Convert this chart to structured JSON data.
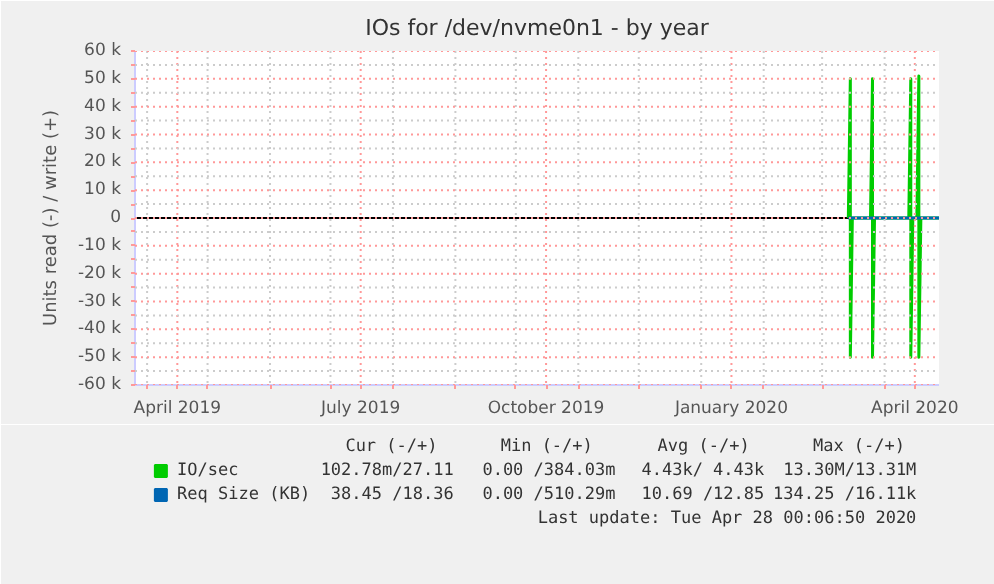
{
  "chart_data": {
    "type": "line",
    "title": "IOs for /dev/nvme0n1 - by year",
    "ylabel": "Units read (-) / write (+)",
    "xlim": [
      "2019-03-26",
      "2020-04-28"
    ],
    "ylim": [
      -60000,
      60000
    ],
    "xticks": [
      {
        "value": "2019-04-01",
        "label": null
      },
      {
        "value": "2019-04-16",
        "label": "April 2019"
      },
      {
        "value": "2019-05-01",
        "label": null
      },
      {
        "value": "2019-06-01",
        "label": null
      },
      {
        "value": "2019-07-01",
        "label": null
      },
      {
        "value": "2019-07-16",
        "label": "July 2019"
      },
      {
        "value": "2019-08-01",
        "label": null
      },
      {
        "value": "2019-09-01",
        "label": null
      },
      {
        "value": "2019-10-01",
        "label": null
      },
      {
        "value": "2019-10-16",
        "label": "October 2019"
      },
      {
        "value": "2019-11-01",
        "label": null
      },
      {
        "value": "2019-12-01",
        "label": null
      },
      {
        "value": "2020-01-01",
        "label": null
      },
      {
        "value": "2020-01-16",
        "label": "January 2020"
      },
      {
        "value": "2020-02-01",
        "label": null
      },
      {
        "value": "2020-03-01",
        "label": null
      },
      {
        "value": "2020-04-01",
        "label": null
      },
      {
        "value": "2020-04-16",
        "label": "April 2020"
      }
    ],
    "yticks": [
      {
        "value": 60000,
        "label": "60 k"
      },
      {
        "value": 55000,
        "label": null
      },
      {
        "value": 50000,
        "label": "50 k"
      },
      {
        "value": 45000,
        "label": null
      },
      {
        "value": 40000,
        "label": "40 k"
      },
      {
        "value": 35000,
        "label": null
      },
      {
        "value": 30000,
        "label": "30 k"
      },
      {
        "value": 25000,
        "label": null
      },
      {
        "value": 20000,
        "label": "20 k"
      },
      {
        "value": 15000,
        "label": null
      },
      {
        "value": 10000,
        "label": "10 k"
      },
      {
        "value": 5000,
        "label": null
      },
      {
        "value": 0,
        "label": "0"
      },
      {
        "value": -5000,
        "label": null
      },
      {
        "value": -10000,
        "label": "-10 k"
      },
      {
        "value": -15000,
        "label": null
      },
      {
        "value": -20000,
        "label": "-20 k"
      },
      {
        "value": -25000,
        "label": null
      },
      {
        "value": -30000,
        "label": "-30 k"
      },
      {
        "value": -35000,
        "label": null
      },
      {
        "value": -40000,
        "label": "-40 k"
      },
      {
        "value": -45000,
        "label": null
      },
      {
        "value": -50000,
        "label": "-50 k"
      },
      {
        "value": -55000,
        "label": null
      },
      {
        "value": -60000,
        "label": "-60 k"
      }
    ],
    "grid": true,
    "legend": "bottom",
    "series": [
      {
        "name": "IO/sec",
        "color": "#00cc00",
        "x": [
          "2020-03-14",
          "2020-03-15",
          "2020-03-15",
          "2020-03-16",
          "2020-03-25",
          "2020-03-26",
          "2020-03-26",
          "2020-03-27",
          "2020-04-13",
          "2020-04-14",
          "2020-04-14",
          "2020-04-15",
          "2020-04-17",
          "2020-04-18",
          "2020-04-18",
          "2020-04-19",
          "2020-04-28"
        ],
        "values": [
          0,
          50000,
          -50000,
          0,
          0,
          50000,
          -50000,
          0,
          0,
          50000,
          -50000,
          0,
          0,
          51000,
          -50000,
          0,
          0
        ]
      },
      {
        "name": "Req Size (KB)",
        "color": "#0066b3",
        "x": [
          "2020-03-14",
          "2020-04-28"
        ],
        "values": [
          0,
          0
        ]
      }
    ],
    "annotations": [
      "Cur (-/+)",
      "Min (-/+)",
      "Avg (-/+)",
      "Max (-/+)",
      "102.78m/27.11",
      "0.00 /384.03m",
      "4.43k/ 4.43k",
      "13.30M/13.31M",
      "38.45 /18.36",
      "0.00 /510.29m",
      "10.69 /12.85",
      "134.25 /16.11k",
      "Last update: Tue Apr 28 00:06:50 2020"
    ]
  }
}
